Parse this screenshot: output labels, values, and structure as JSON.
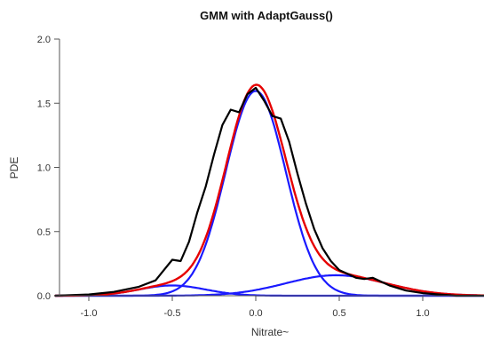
{
  "chart_data": {
    "type": "line",
    "title": "GMM with AdaptGauss()",
    "xlabel": "Nitrate~",
    "ylabel": "PDE",
    "xlim": [
      -1.2,
      1.4
    ],
    "ylim": [
      0,
      2.0
    ],
    "x_ticks": [
      -1.0,
      -0.5,
      0.0,
      0.5,
      1.0
    ],
    "x_tick_labels": [
      "-1.0",
      "-0.5",
      "0.0",
      "0.5",
      "1.0"
    ],
    "y_ticks": [
      0.0,
      0.5,
      1.0,
      1.5,
      2.0
    ],
    "y_tick_labels": [
      "0.0",
      "0.5",
      "1.0",
      "1.5",
      "2.0"
    ],
    "grid": false,
    "legend": "none",
    "series": [
      {
        "role": "empirical-pdf",
        "color": "#000000",
        "x": [
          -1.2,
          -1.0,
          -0.85,
          -0.7,
          -0.6,
          -0.55,
          -0.5,
          -0.45,
          -0.4,
          -0.35,
          -0.3,
          -0.25,
          -0.2,
          -0.15,
          -0.1,
          -0.05,
          0.0,
          0.05,
          0.1,
          0.15,
          0.2,
          0.25,
          0.3,
          0.35,
          0.4,
          0.45,
          0.5,
          0.55,
          0.6,
          0.65,
          0.7,
          0.75,
          0.8,
          0.9,
          1.0,
          1.1,
          1.2,
          1.4
        ],
        "y": [
          0.0,
          0.01,
          0.03,
          0.07,
          0.12,
          0.2,
          0.28,
          0.27,
          0.42,
          0.65,
          0.85,
          1.1,
          1.33,
          1.45,
          1.43,
          1.57,
          1.62,
          1.52,
          1.4,
          1.38,
          1.2,
          0.95,
          0.72,
          0.52,
          0.37,
          0.27,
          0.2,
          0.17,
          0.14,
          0.13,
          0.14,
          0.11,
          0.08,
          0.04,
          0.02,
          0.01,
          0.0,
          0.0
        ]
      },
      {
        "role": "gmm-fit",
        "color": "#e60000",
        "components": [
          {
            "mean": -0.5,
            "sd": 0.2,
            "weight": 0.04
          },
          {
            "mean": 0.0,
            "sd": 0.18,
            "weight": 0.72
          },
          {
            "mean": 0.48,
            "sd": 0.3,
            "weight": 0.12
          }
        ]
      },
      {
        "role": "component",
        "color": "#1a1aff",
        "mean": -0.5,
        "sd": 0.2,
        "weight": 0.04
      },
      {
        "role": "component",
        "color": "#1a1aff",
        "mean": 0.0,
        "sd": 0.18,
        "weight": 0.72
      },
      {
        "role": "component",
        "color": "#1a1aff",
        "mean": 0.48,
        "sd": 0.3,
        "weight": 0.12
      }
    ]
  }
}
